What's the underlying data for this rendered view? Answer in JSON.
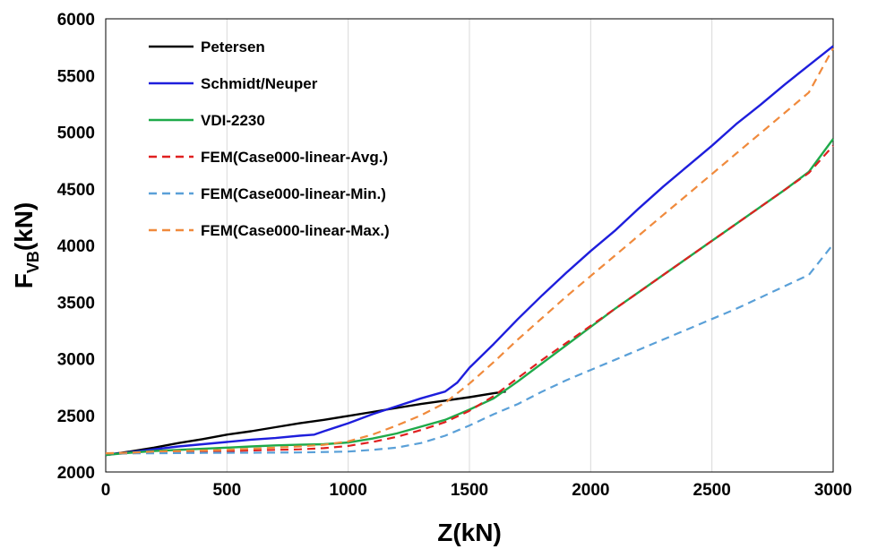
{
  "chart_data": {
    "type": "line",
    "title": "",
    "xlabel": "Z(kN)",
    "ylabel_main": "F",
    "ylabel_sub": "VB",
    "ylabel_tail": "(kN)",
    "xlim": [
      0,
      3000
    ],
    "ylim": [
      2000,
      6000
    ],
    "xticks": [
      0,
      500,
      1000,
      1500,
      2000,
      2500,
      3000
    ],
    "yticks": [
      2000,
      2500,
      3000,
      3500,
      4000,
      4500,
      5000,
      5500,
      6000
    ],
    "grid": "vertical",
    "legend_position": "top-left",
    "series": [
      {
        "name": "Petersen",
        "color": "#000000",
        "dash": "solid",
        "points": [
          [
            0,
            2150
          ],
          [
            100,
            2180
          ],
          [
            200,
            2215
          ],
          [
            300,
            2255
          ],
          [
            400,
            2290
          ],
          [
            500,
            2330
          ],
          [
            600,
            2360
          ],
          [
            700,
            2395
          ],
          [
            800,
            2430
          ],
          [
            900,
            2460
          ],
          [
            1000,
            2495
          ],
          [
            1100,
            2530
          ],
          [
            1200,
            2565
          ],
          [
            1300,
            2600
          ],
          [
            1400,
            2630
          ],
          [
            1500,
            2660
          ],
          [
            1600,
            2695
          ],
          [
            1650,
            2710
          ]
        ]
      },
      {
        "name": "Schmidt/Neuper",
        "color": "#1e1edc",
        "dash": "solid",
        "points": [
          [
            0,
            2150
          ],
          [
            100,
            2175
          ],
          [
            200,
            2200
          ],
          [
            300,
            2225
          ],
          [
            400,
            2245
          ],
          [
            500,
            2265
          ],
          [
            600,
            2285
          ],
          [
            700,
            2300
          ],
          [
            800,
            2320
          ],
          [
            860,
            2330
          ],
          [
            900,
            2360
          ],
          [
            1000,
            2430
          ],
          [
            1100,
            2510
          ],
          [
            1200,
            2580
          ],
          [
            1300,
            2650
          ],
          [
            1400,
            2710
          ],
          [
            1450,
            2790
          ],
          [
            1500,
            2920
          ],
          [
            1600,
            3130
          ],
          [
            1700,
            3350
          ],
          [
            1800,
            3560
          ],
          [
            1900,
            3760
          ],
          [
            2000,
            3950
          ],
          [
            2100,
            4130
          ],
          [
            2200,
            4330
          ],
          [
            2300,
            4520
          ],
          [
            2400,
            4700
          ],
          [
            2500,
            4880
          ],
          [
            2600,
            5070
          ],
          [
            2700,
            5240
          ],
          [
            2800,
            5420
          ],
          [
            2900,
            5590
          ],
          [
            3000,
            5760
          ]
        ]
      },
      {
        "name": "VDI-2230",
        "color": "#1faa4a",
        "dash": "solid",
        "points": [
          [
            0,
            2150
          ],
          [
            100,
            2170
          ],
          [
            200,
            2185
          ],
          [
            300,
            2195
          ],
          [
            400,
            2205
          ],
          [
            500,
            2215
          ],
          [
            600,
            2225
          ],
          [
            700,
            2235
          ],
          [
            800,
            2240
          ],
          [
            900,
            2245
          ],
          [
            1000,
            2260
          ],
          [
            1100,
            2295
          ],
          [
            1200,
            2340
          ],
          [
            1300,
            2400
          ],
          [
            1400,
            2460
          ],
          [
            1500,
            2550
          ],
          [
            1600,
            2650
          ],
          [
            1700,
            2800
          ],
          [
            1800,
            2960
          ],
          [
            1900,
            3120
          ],
          [
            2000,
            3280
          ],
          [
            2100,
            3440
          ],
          [
            2200,
            3590
          ],
          [
            2300,
            3740
          ],
          [
            2400,
            3890
          ],
          [
            2500,
            4040
          ],
          [
            2600,
            4190
          ],
          [
            2700,
            4340
          ],
          [
            2800,
            4490
          ],
          [
            2900,
            4650
          ],
          [
            3000,
            4940
          ]
        ]
      },
      {
        "name": "FEM(Case000-linear-Avg.)",
        "color": "#e02020",
        "dash": "dashed",
        "points": [
          [
            0,
            2165
          ],
          [
            100,
            2165
          ],
          [
            200,
            2170
          ],
          [
            300,
            2175
          ],
          [
            400,
            2180
          ],
          [
            500,
            2185
          ],
          [
            600,
            2190
          ],
          [
            700,
            2195
          ],
          [
            800,
            2200
          ],
          [
            900,
            2210
          ],
          [
            1000,
            2230
          ],
          [
            1100,
            2265
          ],
          [
            1200,
            2310
          ],
          [
            1300,
            2370
          ],
          [
            1400,
            2440
          ],
          [
            1500,
            2540
          ],
          [
            1600,
            2670
          ],
          [
            1700,
            2830
          ],
          [
            1800,
            2990
          ],
          [
            1900,
            3140
          ],
          [
            2000,
            3290
          ],
          [
            2100,
            3440
          ],
          [
            2200,
            3590
          ],
          [
            2300,
            3740
          ],
          [
            2400,
            3890
          ],
          [
            2500,
            4040
          ],
          [
            2600,
            4190
          ],
          [
            2700,
            4340
          ],
          [
            2800,
            4490
          ],
          [
            2900,
            4640
          ],
          [
            3000,
            4880
          ]
        ]
      },
      {
        "name": "FEM(Case000-linear-Min.)",
        "color": "#5aa0d8",
        "dash": "dashed",
        "points": [
          [
            0,
            2165
          ],
          [
            200,
            2165
          ],
          [
            400,
            2168
          ],
          [
            600,
            2170
          ],
          [
            800,
            2172
          ],
          [
            1000,
            2180
          ],
          [
            1100,
            2195
          ],
          [
            1200,
            2215
          ],
          [
            1300,
            2255
          ],
          [
            1400,
            2320
          ],
          [
            1500,
            2410
          ],
          [
            1600,
            2510
          ],
          [
            1700,
            2600
          ],
          [
            1800,
            2710
          ],
          [
            1900,
            2810
          ],
          [
            2000,
            2900
          ],
          [
            2100,
            2990
          ],
          [
            2200,
            3080
          ],
          [
            2300,
            3170
          ],
          [
            2400,
            3260
          ],
          [
            2500,
            3350
          ],
          [
            2600,
            3440
          ],
          [
            2700,
            3540
          ],
          [
            2800,
            3640
          ],
          [
            2900,
            3740
          ],
          [
            3000,
            4010
          ]
        ]
      },
      {
        "name": "FEM(Case000-linear-Max.)",
        "color": "#f08a3c",
        "dash": "dashed",
        "points": [
          [
            0,
            2165
          ],
          [
            100,
            2170
          ],
          [
            200,
            2180
          ],
          [
            300,
            2185
          ],
          [
            400,
            2190
          ],
          [
            500,
            2195
          ],
          [
            600,
            2205
          ],
          [
            700,
            2215
          ],
          [
            800,
            2225
          ],
          [
            900,
            2240
          ],
          [
            1000,
            2270
          ],
          [
            1100,
            2330
          ],
          [
            1200,
            2410
          ],
          [
            1300,
            2500
          ],
          [
            1400,
            2610
          ],
          [
            1500,
            2780
          ],
          [
            1600,
            2970
          ],
          [
            1700,
            3170
          ],
          [
            1800,
            3360
          ],
          [
            1900,
            3550
          ],
          [
            2000,
            3730
          ],
          [
            2100,
            3910
          ],
          [
            2200,
            4090
          ],
          [
            2300,
            4270
          ],
          [
            2400,
            4450
          ],
          [
            2500,
            4630
          ],
          [
            2600,
            4810
          ],
          [
            2700,
            4990
          ],
          [
            2800,
            5170
          ],
          [
            2900,
            5350
          ],
          [
            3000,
            5740
          ]
        ]
      }
    ]
  }
}
